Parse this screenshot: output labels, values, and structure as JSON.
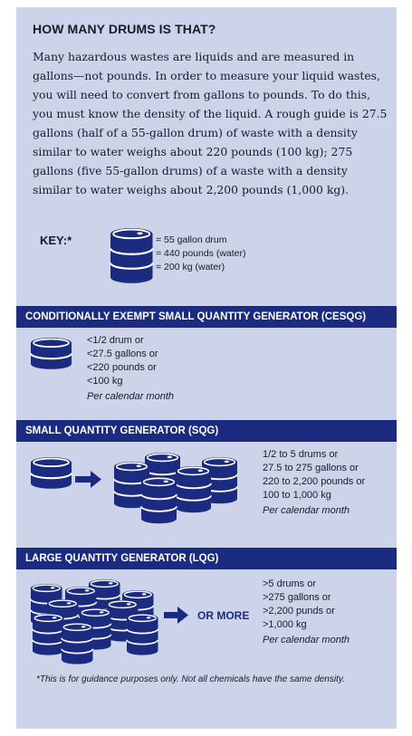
{
  "title": "HOW MANY DRUMS IS THAT?",
  "intro": "Many hazardous wastes are liquids and are measured in gallons—not pounds. In order to measure your liquid wastes, you will need to convert from gallons to pounds. To do this, you must know the density of the liquid. A rough guide is  27.5 gallons (half of a 55-gallon drum) of waste with a density similar to water weighs about 220 pounds (100 kg); 275 gallons (five 55-gallon drums) of a waste with a density similar to water weighs about 2,200 pounds (1,000 kg).",
  "key": {
    "label": "KEY:*",
    "lines": [
      "= 55 gallon drum",
      "= 440 pounds (water)",
      "= 200 kg (water)"
    ]
  },
  "sections": [
    {
      "heading": "CONDITIONALLY EXEMPT SMALL QUANTITY GENERATOR (CESQG)",
      "lines": [
        "<1/2 drum or",
        "<27.5 gallons or",
        "<220 pounds or",
        "<100 kg"
      ],
      "period": "Per calendar month"
    },
    {
      "heading": "SMALL QUANTITY GENERATOR (SQG)",
      "lines": [
        "1/2 to 5 drums or",
        "27.5 to 275 gallons or",
        "220 to 2,200 pounds or",
        "100 to 1,000 kg"
      ],
      "period": "Per calendar month"
    },
    {
      "heading": "LARGE QUANTITY GENERATOR (LQG)",
      "lines": [
        ">5 drums or",
        ">275 gallons or",
        ">2,200 punds or",
        ">1,000 kg"
      ],
      "period": "Per calendar month",
      "arrow_label": "OR MORE"
    }
  ],
  "footnote": "*This is for guidance purposes only. Not all chemicals have the same density.",
  "colors": {
    "panel": "#cdd3e8",
    "band": "#1b2b80",
    "drum": "#1b2b80"
  }
}
